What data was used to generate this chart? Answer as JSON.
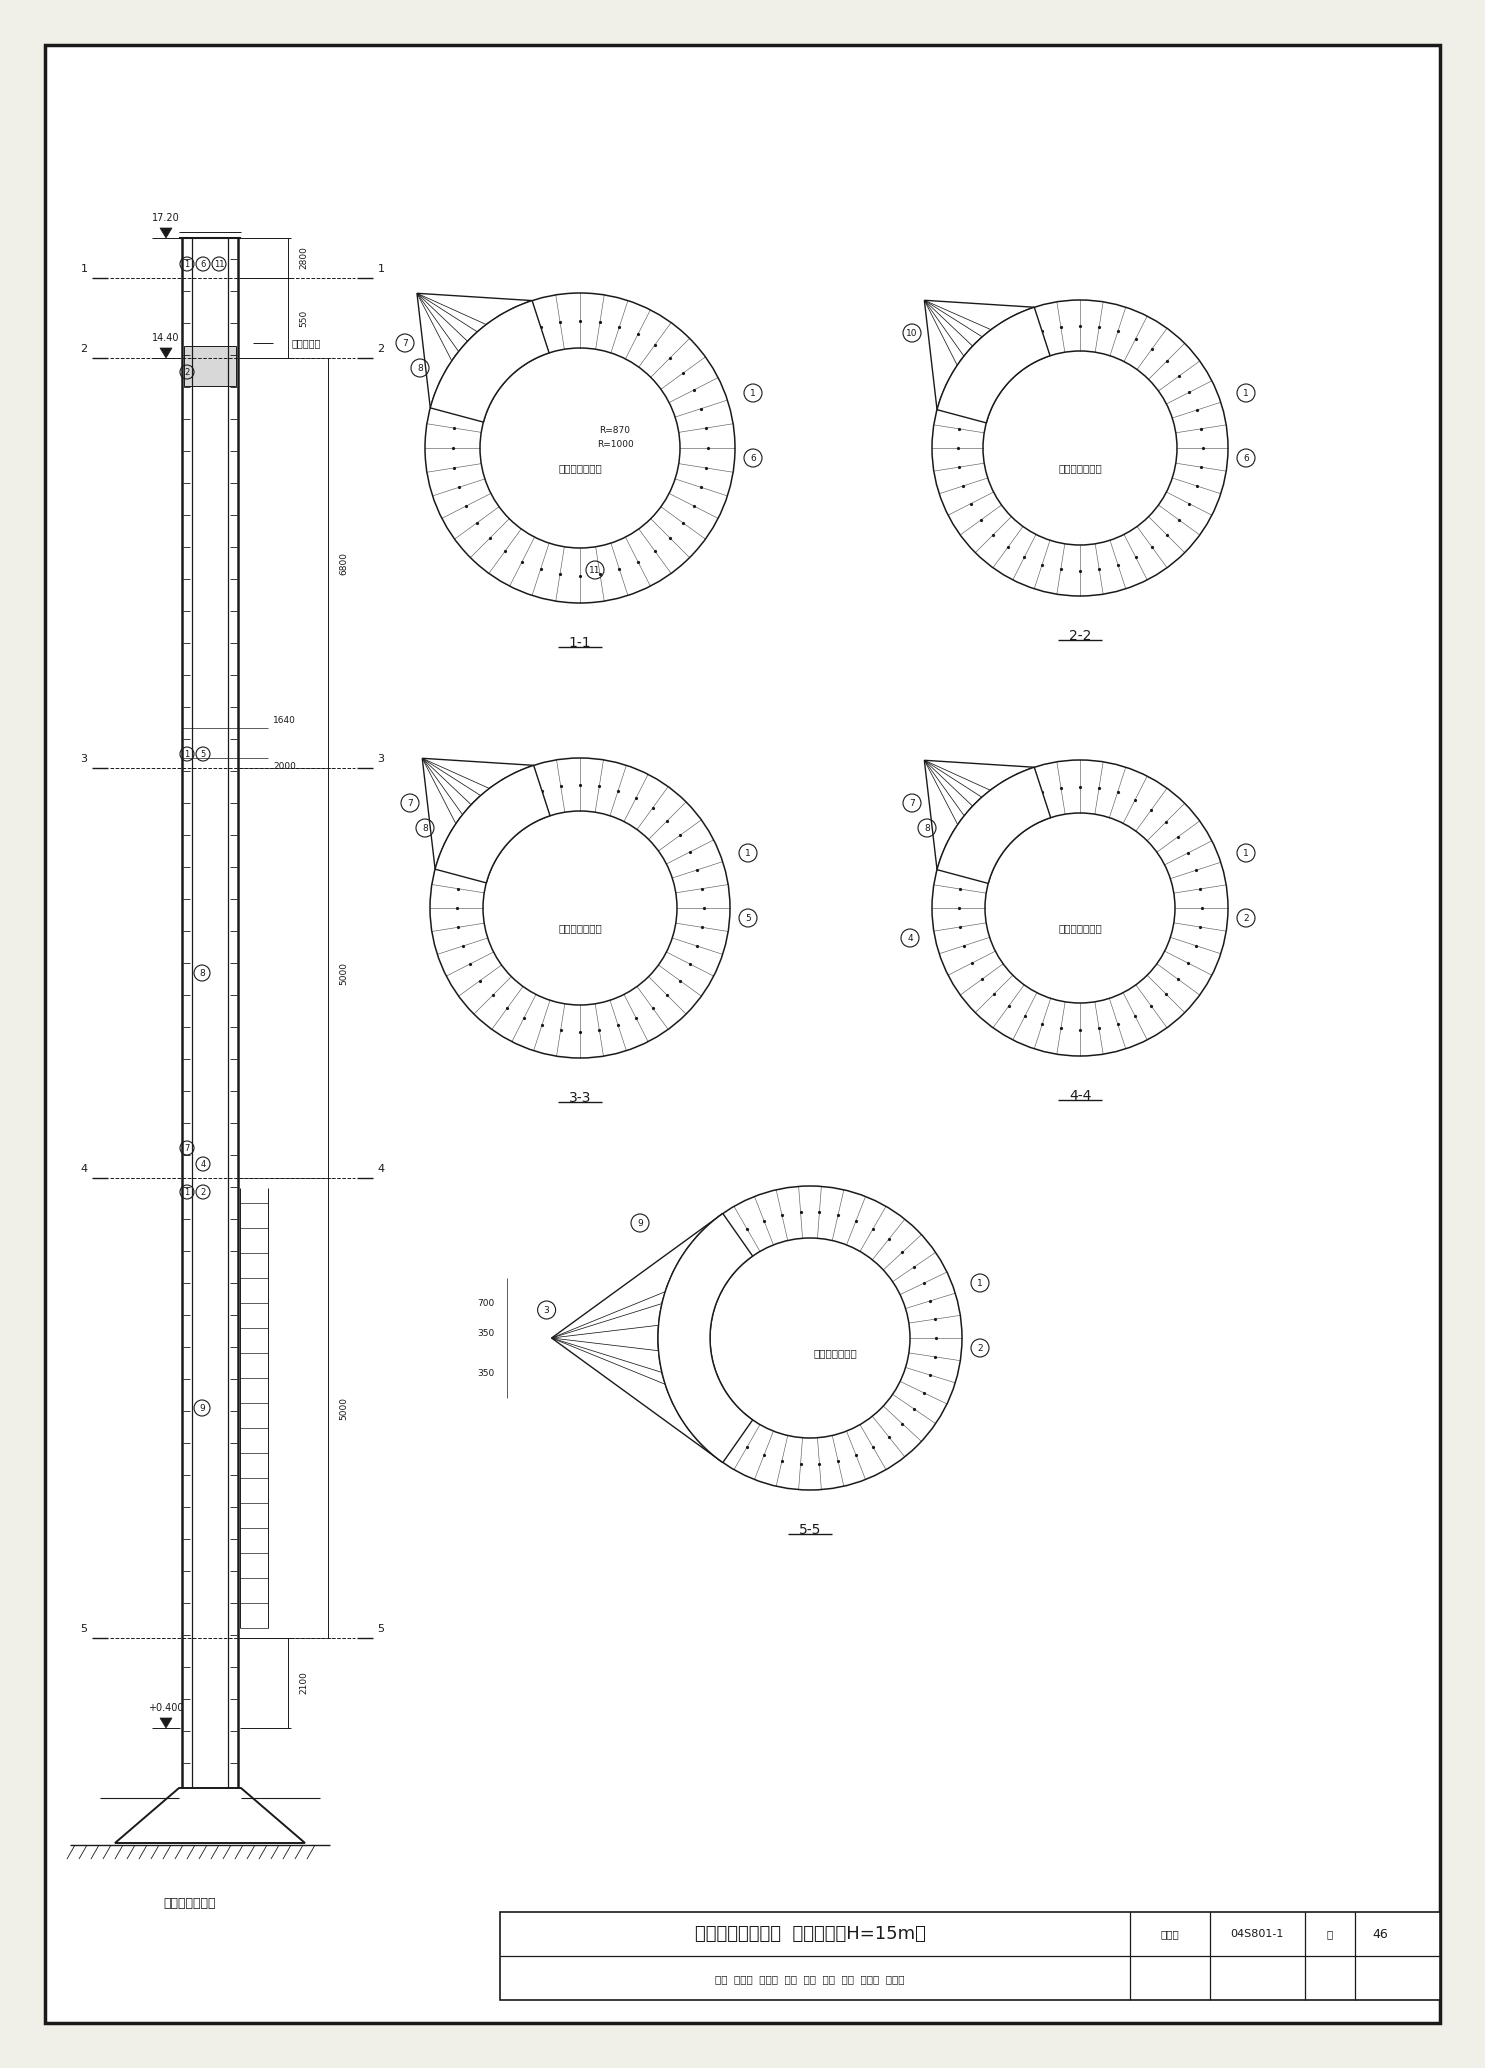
{
  "page_bg": "#f0efe8",
  "drawing_bg": "#ffffff",
  "line_color": "#1a1a1a",
  "title_main": "支筒结构图（一）",
  "title_sub": "（预制方案H=15m）",
  "title_atlas_label": "图集号",
  "title_atlas_val": "04S801-1",
  "title_page_label": "页",
  "title_page_val": "46",
  "inner_text": "兼作防雷引下线",
  "label_zhutongliumao": "支筒预留孔",
  "label_pujin": "支筒配筋剖面图",
  "r850": "R=870",
  "r1000": "R=1000",
  "sec11": "1-1",
  "sec22": "2-2",
  "sec33": "3-3",
  "sec44": "4-4",
  "sec55": "5-5",
  "elev_top": "17.20",
  "elev_mid": "14.40",
  "elev_bot": "+0.400",
  "dim_2800": "2800",
  "dim_550": "550",
  "dim_6800": "6800",
  "dim_5000a": "5000",
  "dim_5000b": "5000",
  "dim_2100": "2100",
  "dim_1640": "1640",
  "dim_2000": "2000",
  "dim_700": "700",
  "dim_350a": "350",
  "dim_350b": "350"
}
